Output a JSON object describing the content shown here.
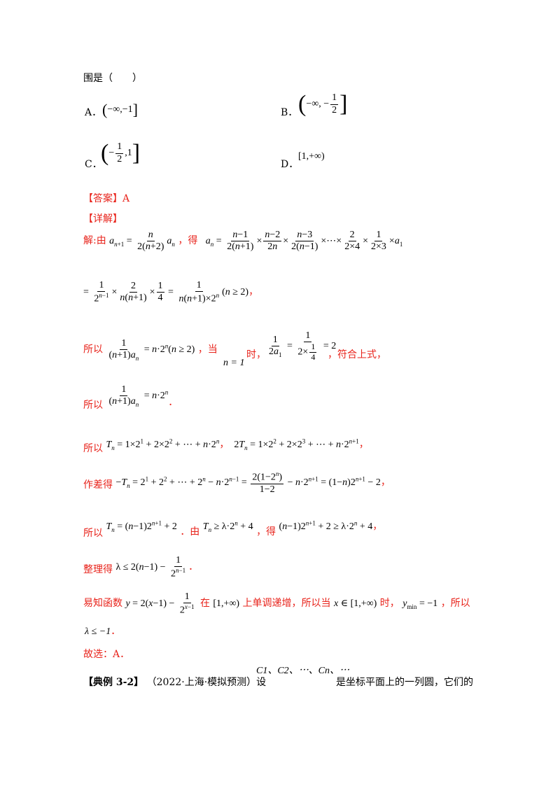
{
  "question": {
    "stem_end": "围是（　　）",
    "options": [
      {
        "label": "A．",
        "math": "(−∞,−1]"
      },
      {
        "label": "B．",
        "math": "(−∞,−1/2]"
      },
      {
        "label": "C．",
        "math": "(−1/2,1]"
      },
      {
        "label": "D．",
        "math": "[1,+∞)"
      }
    ]
  },
  "answer": {
    "tag": "【答案】",
    "value": "A"
  },
  "explanation": {
    "tag": "【详解】",
    "l1_prefix": "解:由",
    "l1_mid": "，得",
    "l3_prefix": "所以",
    "l3_mid": "，当",
    "l3_n1": "n = 1",
    "l3_time": "时，",
    "l3_end": "，符合上式，",
    "l4_prefix": "所以",
    "l5_prefix": "所以",
    "l6_prefix": "作差得",
    "l7_prefix": "所以",
    "l7_mid1": "．由",
    "l7_mid2": "，得",
    "l8_prefix": "整理得",
    "l9_prefix": "易知函数",
    "l9_mid1": "在",
    "l9_mid2": "上单调递增，所以当",
    "l9_mid3": "时，",
    "l9_end": "，所以",
    "l10_math": "λ ≤ −1",
    "l11": "故选：A．"
  },
  "next_example": {
    "tag": "【典例 3-2】",
    "source": "（2022·上海·模拟预测）设",
    "circles": "C1、C2、⋯、Cn、⋯",
    "rest": "是坐标平面上的一列圆，它们的"
  }
}
